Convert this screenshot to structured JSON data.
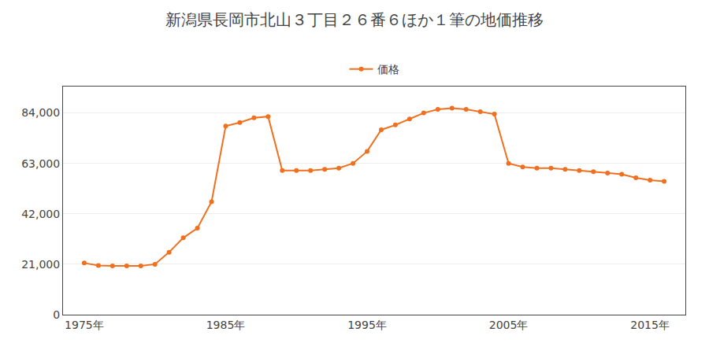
{
  "chart_data": {
    "type": "line",
    "title": "新潟県長岡市北山３丁目２６番６ほか１筆の地価推移",
    "series": [
      {
        "name": "価格",
        "color": "#f07020",
        "marker": "circle",
        "line_style": "solid",
        "values": [
          21500,
          20500,
          20300,
          20300,
          20300,
          21000,
          26000,
          32000,
          36000,
          47000,
          78500,
          80000,
          82000,
          82500,
          60000,
          60000,
          60000,
          60500,
          61000,
          63000,
          68000,
          77000,
          79000,
          81500,
          84000,
          85500,
          86000,
          85500,
          84500,
          83500,
          63000,
          61500,
          61000,
          61000,
          60500,
          60000,
          59500,
          59000,
          58500,
          57000,
          56000,
          55500
        ]
      }
    ],
    "x": [
      1975,
      1976,
      1977,
      1978,
      1979,
      1980,
      1981,
      1982,
      1983,
      1984,
      1985,
      1986,
      1987,
      1988,
      1989,
      1990,
      1991,
      1992,
      1993,
      1994,
      1995,
      1996,
      1997,
      1998,
      1999,
      2000,
      2001,
      2002,
      2003,
      2004,
      2005,
      2006,
      2007,
      2008,
      2009,
      2010,
      2011,
      2012,
      2013,
      2014,
      2015,
      2016
    ],
    "xlim": [
      1973.5,
      2017.5
    ],
    "xticks": [
      {
        "value": 1975,
        "label": "1975年"
      },
      {
        "value": 1985,
        "label": "1985年"
      },
      {
        "value": 1995,
        "label": "1995年"
      },
      {
        "value": 2005,
        "label": "2005年"
      },
      {
        "value": 2015,
        "label": "2015年"
      }
    ],
    "ylim": [
      0,
      95000
    ],
    "yticks": [
      0,
      {
        "value": 21000,
        "label": "21,000"
      },
      {
        "value": 42000,
        "label": "42,000"
      },
      {
        "value": 63000,
        "label": "63,000"
      },
      {
        "value": 84000,
        "label": "84,000"
      }
    ],
    "grid": "y",
    "legend": "top"
  }
}
